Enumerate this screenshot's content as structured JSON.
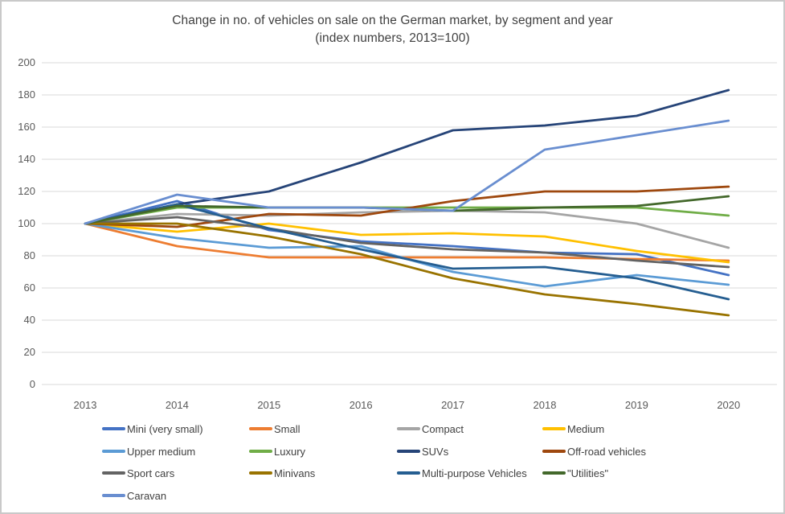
{
  "title": {
    "line1": "Change in no. of vehicles on sale on the German market, by segment and year",
    "line2": "(index numbers, 2013=100)"
  },
  "chart_data": {
    "type": "line",
    "x": [
      "2013",
      "2014",
      "2015",
      "2016",
      "2017",
      "2018",
      "2019",
      "2020"
    ],
    "series": [
      {
        "name": "Mini (very small)",
        "color": "#4472C4",
        "values": [
          100,
          114,
          96,
          89,
          86,
          82,
          81,
          68
        ]
      },
      {
        "name": "Small",
        "color": "#ED7D31",
        "values": [
          100,
          86,
          79,
          79,
          79,
          79,
          78,
          77
        ]
      },
      {
        "name": "Compact",
        "color": "#A5A5A5",
        "values": [
          100,
          106,
          105,
          107,
          108,
          107,
          100,
          85
        ]
      },
      {
        "name": "Medium",
        "color": "#FFC000",
        "values": [
          100,
          95,
          100,
          93,
          94,
          92,
          83,
          76
        ]
      },
      {
        "name": "Upper medium",
        "color": "#5B9BD5",
        "values": [
          100,
          91,
          85,
          86,
          70,
          61,
          68,
          62
        ]
      },
      {
        "name": "Luxury",
        "color": "#70AD47",
        "values": [
          100,
          110,
          110,
          110,
          110,
          110,
          110,
          105
        ]
      },
      {
        "name": "SUVs",
        "color": "#264478",
        "values": [
          100,
          112,
          120,
          138,
          158,
          161,
          167,
          183
        ]
      },
      {
        "name": "Off-road vehicles",
        "color": "#9E480E",
        "values": [
          100,
          98,
          106,
          105,
          114,
          120,
          120,
          123
        ]
      },
      {
        "name": "Sport cars",
        "color": "#636363",
        "values": [
          100,
          104,
          97,
          88,
          84,
          82,
          77,
          73
        ]
      },
      {
        "name": "Minivans",
        "color": "#997300",
        "values": [
          100,
          100,
          92,
          81,
          66,
          56,
          50,
          43
        ]
      },
      {
        "name": "Multi-purpose Vehicles",
        "color": "#255E91",
        "values": [
          100,
          112,
          97,
          84,
          72,
          73,
          66,
          53
        ]
      },
      {
        "name": "\"Utilities\"",
        "color": "#43682B",
        "values": [
          100,
          111,
          110,
          110,
          108,
          110,
          111,
          117
        ]
      },
      {
        "name": "Caravan",
        "color": "#698ED0",
        "values": [
          100,
          118,
          110,
          110,
          108,
          146,
          155,
          164
        ]
      }
    ],
    "ylim": [
      0,
      200
    ],
    "y_ticks": [
      0,
      20,
      40,
      60,
      80,
      100,
      120,
      140,
      160,
      180,
      200
    ],
    "grid": "horizontal",
    "gridline_color": "#d9d9d9",
    "legend_position": "bottom",
    "xlabel": "",
    "ylabel": ""
  }
}
